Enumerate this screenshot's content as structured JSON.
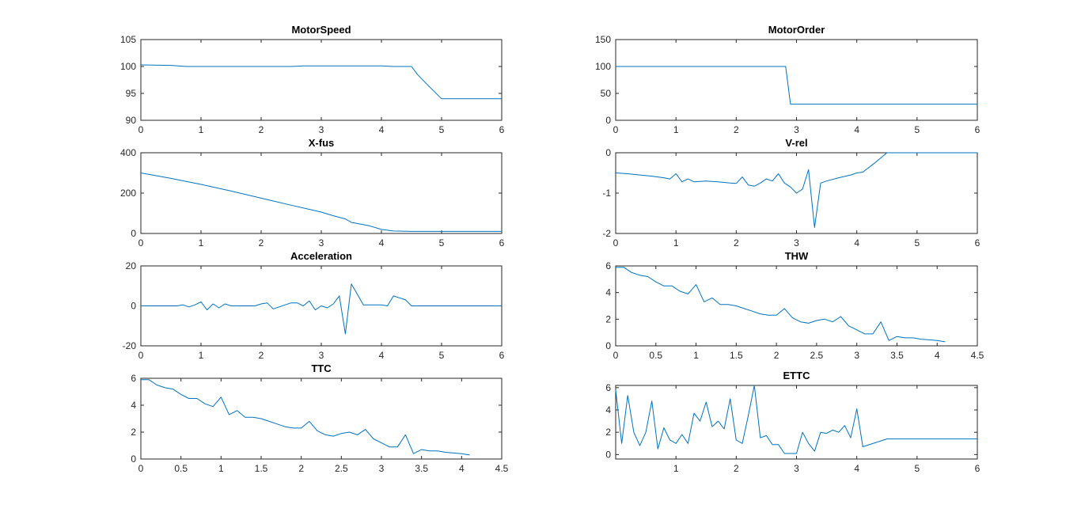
{
  "line_color": "#0072bd",
  "axes_color": "#262626",
  "background": "#ffffff",
  "chart_data": [
    {
      "type": "line",
      "title": "MotorSpeed",
      "xlim": [
        0,
        6
      ],
      "ylim": [
        90,
        105
      ],
      "xticks": [
        "0",
        "1",
        "2",
        "3",
        "4",
        "5",
        "6"
      ],
      "yticks": [
        "90",
        "95",
        "100",
        "105"
      ],
      "x": [
        0,
        0.5,
        0.75,
        1,
        1.5,
        2,
        2.5,
        2.7,
        3,
        3.5,
        4,
        4.2,
        4.5,
        4.6,
        4.8,
        5,
        5.5,
        6
      ],
      "y": [
        100.3,
        100.2,
        100.0,
        100.0,
        100.0,
        100.0,
        100.0,
        100.1,
        100.1,
        100.1,
        100.1,
        100.0,
        100.0,
        98.5,
        96.2,
        94.0,
        94.0,
        94.0
      ]
    },
    {
      "type": "line",
      "title": "MotorOrder",
      "xlim": [
        0,
        6
      ],
      "ylim": [
        0,
        150
      ],
      "xticks": [
        "0",
        "1",
        "2",
        "3",
        "4",
        "5",
        "6"
      ],
      "yticks": [
        "0",
        "50",
        "100",
        "150"
      ],
      "x": [
        0,
        1,
        2,
        2.82,
        2.9,
        4,
        5,
        6
      ],
      "y": [
        100,
        100,
        100,
        100,
        30,
        30,
        30,
        30
      ]
    },
    {
      "type": "line",
      "title": "X-fus",
      "xlim": [
        0,
        6
      ],
      "ylim": [
        0,
        400
      ],
      "xticks": [
        "0",
        "1",
        "2",
        "3",
        "4",
        "5",
        "6"
      ],
      "yticks": [
        "0",
        "200",
        "400"
      ],
      "x": [
        0,
        0.5,
        1,
        1.5,
        2,
        2.5,
        3,
        3.2,
        3.4,
        3.5,
        3.8,
        4,
        4.2,
        4.5,
        5,
        6
      ],
      "y": [
        300,
        273,
        243,
        210,
        175,
        140,
        106,
        88,
        72,
        55,
        38,
        20,
        12,
        10,
        10,
        10
      ]
    },
    {
      "type": "line",
      "title": "V-rel",
      "xlim": [
        0,
        6
      ],
      "ylim": [
        -2,
        0
      ],
      "xticks": [
        "0",
        "1",
        "2",
        "3",
        "4",
        "5",
        "6"
      ],
      "yticks": [
        "-2",
        "-1",
        "0"
      ],
      "x": [
        0,
        0.2,
        0.4,
        0.6,
        0.8,
        0.9,
        1.0,
        1.1,
        1.2,
        1.3,
        1.5,
        1.7,
        1.9,
        2.0,
        2.1,
        2.2,
        2.3,
        2.4,
        2.5,
        2.6,
        2.7,
        2.8,
        2.9,
        3.0,
        3.1,
        3.2,
        3.3,
        3.4,
        3.5,
        3.7,
        3.9,
        4.0,
        4.1,
        4.3,
        4.5,
        5.0,
        6.0
      ],
      "y": [
        -0.5,
        -0.52,
        -0.55,
        -0.58,
        -0.62,
        -0.65,
        -0.52,
        -0.72,
        -0.65,
        -0.72,
        -0.7,
        -0.72,
        -0.75,
        -0.76,
        -0.6,
        -0.8,
        -0.83,
        -0.75,
        -0.65,
        -0.7,
        -0.52,
        -0.75,
        -0.85,
        -1.0,
        -0.9,
        -0.42,
        -1.85,
        -0.75,
        -0.7,
        -0.62,
        -0.55,
        -0.5,
        -0.48,
        -0.25,
        0,
        0,
        0
      ]
    },
    {
      "type": "line",
      "title": "Acceleration",
      "xlim": [
        0,
        6
      ],
      "ylim": [
        -20,
        20
      ],
      "xticks": [
        "0",
        "1",
        "2",
        "3",
        "4",
        "5",
        "6"
      ],
      "yticks": [
        "-20",
        "0",
        "20"
      ],
      "x": [
        0,
        0.3,
        0.6,
        0.7,
        0.8,
        0.9,
        1.0,
        1.1,
        1.2,
        1.3,
        1.4,
        1.5,
        1.6,
        1.8,
        1.9,
        2.0,
        2.1,
        2.2,
        2.3,
        2.4,
        2.5,
        2.6,
        2.7,
        2.8,
        2.9,
        3.0,
        3.1,
        3.2,
        3.3,
        3.4,
        3.5,
        3.7,
        3.9,
        4.0,
        4.1,
        4.2,
        4.4,
        4.5,
        5.0,
        6.0
      ],
      "y": [
        0,
        0,
        0,
        0.5,
        -0.5,
        0.5,
        2,
        -2,
        1,
        -1,
        1,
        0,
        0,
        0,
        0,
        1,
        1.5,
        -1.5,
        -0.5,
        0.5,
        1.5,
        1.5,
        0,
        2.5,
        -2,
        0,
        -1,
        1,
        5,
        -14,
        11,
        0.5,
        0.5,
        0.5,
        0,
        5,
        3,
        0,
        0,
        0
      ]
    },
    {
      "type": "line",
      "title": "THW",
      "xlim": [
        0,
        4.5
      ],
      "ylim": [
        0,
        6
      ],
      "xticks": [
        "0",
        "0.5",
        "1",
        "1.5",
        "2",
        "2.5",
        "3",
        "3.5",
        "4",
        "4.5"
      ],
      "yticks": [
        "0",
        "2",
        "4",
        "6"
      ],
      "x": [
        0,
        0.1,
        0.2,
        0.3,
        0.4,
        0.5,
        0.6,
        0.7,
        0.8,
        0.9,
        1.0,
        1.1,
        1.2,
        1.3,
        1.4,
        1.5,
        1.6,
        1.7,
        1.8,
        1.9,
        2.0,
        2.1,
        2.2,
        2.3,
        2.4,
        2.5,
        2.6,
        2.7,
        2.8,
        2.9,
        3.0,
        3.1,
        3.2,
        3.3,
        3.4,
        3.5,
        3.6,
        3.7,
        3.8,
        3.9,
        4.0,
        4.1
      ],
      "y": [
        5.9,
        5.9,
        5.5,
        5.3,
        5.2,
        4.8,
        4.5,
        4.5,
        4.1,
        3.9,
        4.6,
        3.3,
        3.6,
        3.1,
        3.1,
        3.0,
        2.8,
        2.6,
        2.4,
        2.3,
        2.3,
        2.8,
        2.1,
        1.8,
        1.7,
        1.9,
        2.0,
        1.8,
        2.2,
        1.5,
        1.2,
        0.9,
        0.9,
        1.8,
        0.4,
        0.7,
        0.6,
        0.6,
        0.5,
        0.45,
        0.4,
        0.3
      ]
    },
    {
      "type": "line",
      "title": "TTC",
      "xlim": [
        0,
        4.5
      ],
      "ylim": [
        0,
        6
      ],
      "xticks": [
        "0",
        "0.5",
        "1",
        "1.5",
        "2",
        "2.5",
        "3",
        "3.5",
        "4",
        "4.5"
      ],
      "yticks": [
        "0",
        "2",
        "4",
        "6"
      ],
      "x": [
        0,
        0.1,
        0.2,
        0.3,
        0.4,
        0.5,
        0.6,
        0.7,
        0.8,
        0.9,
        1.0,
        1.1,
        1.2,
        1.3,
        1.4,
        1.5,
        1.6,
        1.7,
        1.8,
        1.9,
        2.0,
        2.1,
        2.2,
        2.3,
        2.4,
        2.5,
        2.6,
        2.7,
        2.8,
        2.9,
        3.0,
        3.1,
        3.2,
        3.3,
        3.4,
        3.5,
        3.6,
        3.7,
        3.8,
        3.9,
        4.0,
        4.1
      ],
      "y": [
        5.9,
        5.9,
        5.5,
        5.3,
        5.2,
        4.8,
        4.5,
        4.5,
        4.1,
        3.9,
        4.6,
        3.3,
        3.6,
        3.1,
        3.1,
        3.0,
        2.8,
        2.6,
        2.4,
        2.3,
        2.3,
        2.8,
        2.1,
        1.8,
        1.7,
        1.9,
        2.0,
        1.8,
        2.2,
        1.5,
        1.2,
        0.9,
        0.9,
        1.8,
        0.4,
        0.7,
        0.6,
        0.6,
        0.5,
        0.45,
        0.4,
        0.3
      ]
    },
    {
      "type": "line",
      "title": "ETTC",
      "xlim": [
        0,
        6
      ],
      "ylim": [
        -0.4,
        6.2
      ],
      "xticks": [
        "1",
        "2",
        "3",
        "4",
        "5",
        "6"
      ],
      "ytickvalues": [
        0,
        2,
        4,
        6
      ],
      "yticks": [
        "0",
        "2",
        "4",
        "6"
      ],
      "x": [
        0,
        0.1,
        0.2,
        0.3,
        0.4,
        0.5,
        0.6,
        0.7,
        0.8,
        0.9,
        1.0,
        1.1,
        1.2,
        1.3,
        1.4,
        1.5,
        1.6,
        1.7,
        1.8,
        1.9,
        2.0,
        2.1,
        2.2,
        2.3,
        2.4,
        2.5,
        2.6,
        2.7,
        2.8,
        2.9,
        3.0,
        3.1,
        3.2,
        3.3,
        3.4,
        3.5,
        3.6,
        3.7,
        3.8,
        3.9,
        4.0,
        4.1,
        4.5,
        5.0,
        6.0
      ],
      "y": [
        5.8,
        1.0,
        5.3,
        2.0,
        0.8,
        2.0,
        4.8,
        0.5,
        2.4,
        1.3,
        1.0,
        1.8,
        1.0,
        3.7,
        3.0,
        4.7,
        2.5,
        3.0,
        2.3,
        5.0,
        1.3,
        1.0,
        3.5,
        6.2,
        1.5,
        1.7,
        0.9,
        0.9,
        0.1,
        0.1,
        0.1,
        2.0,
        1.0,
        0.3,
        2.0,
        1.9,
        2.2,
        2.0,
        2.6,
        1.5,
        4.1,
        0.7,
        1.4,
        1.4,
        1.4
      ]
    }
  ]
}
